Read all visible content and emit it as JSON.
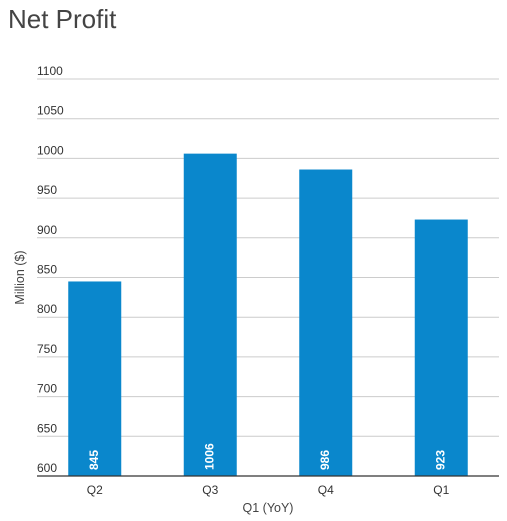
{
  "chart_data": {
    "type": "bar",
    "title": "Net Profit",
    "xlabel": "Q1 (YoY)",
    "ylabel": "Million ($)",
    "categories": [
      "Q2",
      "Q3",
      "Q4",
      "Q1"
    ],
    "values": [
      845,
      1006,
      986,
      923
    ],
    "data_labels": [
      "845",
      "1006",
      "986",
      "923"
    ],
    "ylim": [
      600,
      1100
    ],
    "yticks": [
      600,
      650,
      700,
      750,
      800,
      850,
      900,
      950,
      1000,
      1050,
      1100
    ],
    "bar_color": "#0a87cc",
    "grid": true,
    "legend": "none"
  }
}
